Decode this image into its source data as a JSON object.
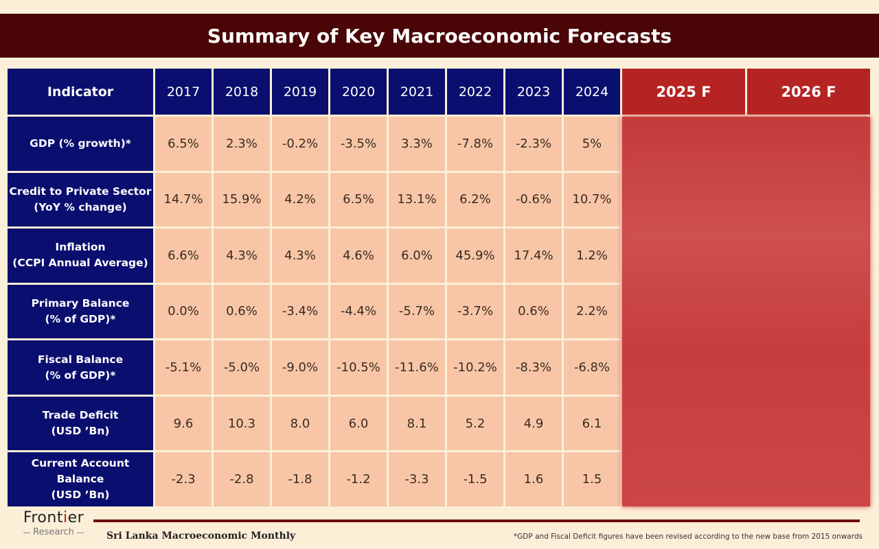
{
  "title": "Summary of Key Macroeconomic Forecasts",
  "table": {
    "header": {
      "indicator": "Indicator",
      "years": [
        "2017",
        "2018",
        "2019",
        "2020",
        "2021",
        "2022",
        "2023",
        "2024"
      ],
      "forecasts": [
        "2025 F",
        "2026 F"
      ]
    },
    "rows": [
      {
        "label": [
          "GDP (% growth)*"
        ],
        "values": [
          "6.5%",
          "2.3%",
          "-0.2%",
          "-3.5%",
          "3.3%",
          "-7.8%",
          "-2.3%",
          "5%"
        ]
      },
      {
        "label": [
          "Credit to Private Sector",
          "(YoY % change)"
        ],
        "values": [
          "14.7%",
          "15.9%",
          "4.2%",
          "6.5%",
          "13.1%",
          "6.2%",
          "-0.6%",
          "10.7%"
        ]
      },
      {
        "label": [
          "Inflation",
          "(CCPI Annual Average)"
        ],
        "values": [
          "6.6%",
          "4.3%",
          "4.3%",
          "4.6%",
          "6.0%",
          "45.9%",
          "17.4%",
          "1.2%"
        ]
      },
      {
        "label": [
          "Primary Balance",
          "(% of GDP)*"
        ],
        "values": [
          "0.0%",
          "0.6%",
          "-3.4%",
          "-4.4%",
          "-5.7%",
          "-3.7%",
          "0.6%",
          "2.2%"
        ]
      },
      {
        "label": [
          "Fiscal Balance",
          "(% of GDP)*"
        ],
        "values": [
          "-5.1%",
          "-5.0%",
          "-9.0%",
          "-10.5%",
          "-11.6%",
          "-10.2%",
          "-8.3%",
          "-6.8%"
        ]
      },
      {
        "label": [
          "Trade Deficit",
          "(USD ’Bn)"
        ],
        "values": [
          "9.6",
          "10.3",
          "8.0",
          "6.0",
          "8.1",
          "5.2",
          "4.9",
          "6.1"
        ]
      },
      {
        "label": [
          "Current Account",
          "Balance",
          "(USD ’Bn)"
        ],
        "values": [
          "-2.3",
          "-2.8",
          "-1.8",
          "-1.2",
          "-3.3",
          "-1.5",
          "1.6",
          "1.5"
        ]
      }
    ]
  },
  "footer": {
    "logo_main_pre": "Front",
    "logo_main_accent": "i",
    "logo_main_post": "er",
    "logo_sub": "Research",
    "report_name": "Sri Lanka  Macroeconomic Monthly",
    "footnote": "*GDP and Fiscal  Deficit  figures  have been revised  according  to the new base from 2015 onwards"
  },
  "colors": {
    "title_bg": "#4a0606",
    "navy": "#0a0e6e",
    "forecast_red": "#b52323",
    "cell_peach": "#f8c6a6",
    "page_bg": "#fcefd8"
  }
}
